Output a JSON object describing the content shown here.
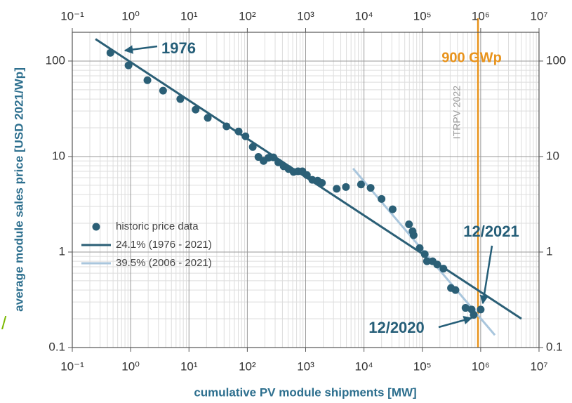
{
  "chart_data": {
    "type": "scatter",
    "xlabel": "cumulative PV module shipments [MW]",
    "ylabel": "average module sales price [USD 2021/Wp]",
    "log_x": true,
    "log_y": true,
    "xlim": [
      0.1,
      10000000
    ],
    "ylim": [
      0.1,
      200
    ],
    "xticks": [
      {
        "value": 0.1,
        "label": "10⁻¹"
      },
      {
        "value": 1,
        "label": "10⁰"
      },
      {
        "value": 10,
        "label": "10¹"
      },
      {
        "value": 100,
        "label": "10²"
      },
      {
        "value": 1000,
        "label": "10³"
      },
      {
        "value": 10000,
        "label": "10⁴"
      },
      {
        "value": 100000,
        "label": "10⁵"
      },
      {
        "value": 1000000,
        "label": "10⁶"
      },
      {
        "value": 10000000,
        "label": "10⁷"
      }
    ],
    "yticks": [
      0.1,
      1,
      10,
      100
    ],
    "grid": true,
    "minor_grid": true,
    "series": [
      {
        "name": "historic price data",
        "type": "scatter",
        "color": "#2b5f76",
        "x": [
          0.45,
          0.92,
          1.94,
          3.6,
          7.1,
          13,
          21,
          44,
          71,
          93,
          124,
          155,
          190,
          230,
          280,
          340,
          420,
          510,
          620,
          740,
          880,
          1050,
          1300,
          1600,
          1900,
          3400,
          4900,
          8900,
          13000,
          20000,
          31000,
          59000,
          68000,
          71000,
          90000,
          110000,
          120000,
          150000,
          180000,
          230000,
          310000,
          370000,
          550000,
          700000,
          760000,
          1000000
        ],
        "values": [
          122,
          90,
          63,
          49,
          40,
          31,
          25.4,
          20.7,
          18.3,
          16.3,
          12.6,
          9.9,
          9.0,
          9.7,
          9.8,
          8.7,
          7.9,
          7.4,
          6.9,
          7.0,
          7.0,
          6.4,
          5.7,
          5.6,
          5.3,
          4.6,
          4.8,
          5.1,
          4.7,
          3.6,
          2.8,
          1.95,
          1.65,
          1.5,
          1.1,
          0.95,
          0.8,
          0.8,
          0.74,
          0.67,
          0.42,
          0.4,
          0.26,
          0.25,
          0.22,
          0.25
        ]
      },
      {
        "name": "24.1% (1976 - 2021)",
        "type": "line",
        "color": "#2b5f76",
        "x": [
          0.25,
          5000000
        ],
        "values": [
          170,
          0.2
        ]
      },
      {
        "name": "39.5% (2006 - 2021)",
        "type": "line",
        "color": "#a9c6dd",
        "x": [
          6500,
          1750000
        ],
        "values": [
          7.5,
          0.135
        ]
      }
    ],
    "vline": {
      "x": 900000,
      "label": "900 GWp",
      "color": "#e8931c"
    },
    "annotations": [
      "1976",
      "12/2021",
      "12/2020",
      "ITRPV 2022",
      "/"
    ]
  }
}
